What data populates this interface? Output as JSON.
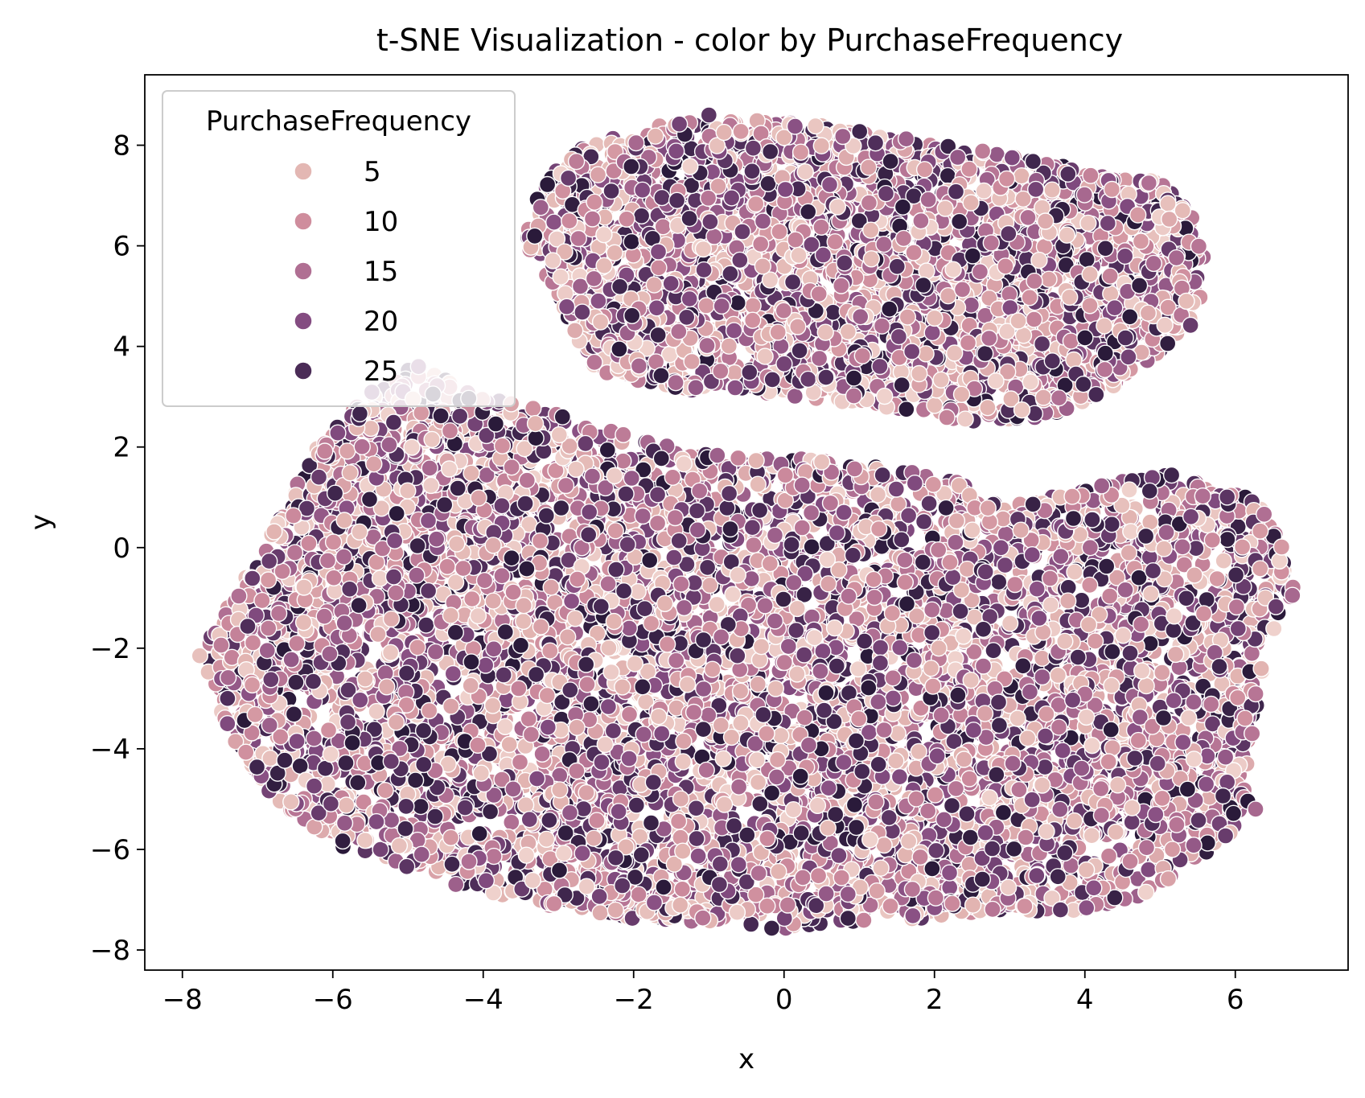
{
  "chart_data": {
    "type": "scatter",
    "title": "t-SNE Visualization - color by PurchaseFrequency",
    "xlabel": "x",
    "ylabel": "y",
    "xlim": [
      -8.5,
      7.5
    ],
    "ylim": [
      -8.4,
      9.4
    ],
    "xticks": [
      -8,
      -6,
      -4,
      -2,
      0,
      2,
      4,
      6
    ],
    "xtick_labels": [
      "−8",
      "−6",
      "−4",
      "−2",
      "0",
      "2",
      "4",
      "6"
    ],
    "yticks": [
      -8,
      -6,
      -4,
      -2,
      0,
      2,
      4,
      6,
      8
    ],
    "ytick_labels": [
      "−8",
      "−6",
      "−4",
      "−2",
      "0",
      "2",
      "4",
      "6",
      "8"
    ],
    "grid": false,
    "legend": {
      "title": "PurchaseFrequency",
      "placement": "top-left",
      "entries": [
        {
          "label": "5",
          "value": 5,
          "color": "#e3b7b3"
        },
        {
          "label": "10",
          "value": 10,
          "color": "#cf8d9d"
        },
        {
          "label": "15",
          "value": 15,
          "color": "#b06f93"
        },
        {
          "label": "20",
          "value": 20,
          "color": "#844c81"
        },
        {
          "label": "25",
          "value": 25,
          "color": "#4b2c57"
        }
      ]
    },
    "color_scale": {
      "min": 1,
      "max": 29,
      "colors": [
        "#efd1cc",
        "#e3b7b3",
        "#cf8d9d",
        "#b06f93",
        "#844c81",
        "#4b2c57",
        "#2a1a3a"
      ]
    },
    "clusters": [
      {
        "name": "",
        "outline": [
          [
            -4.9,
            3.6
          ],
          [
            -3.9,
            3.0
          ],
          [
            -3.3,
            2.8
          ],
          [
            -2.5,
            2.4
          ],
          [
            -1.5,
            2.0
          ],
          [
            -0.5,
            1.85
          ],
          [
            0.5,
            1.75
          ],
          [
            1.5,
            1.6
          ],
          [
            2.3,
            1.3
          ],
          [
            3.0,
            0.9
          ],
          [
            3.8,
            1.05
          ],
          [
            4.5,
            1.35
          ],
          [
            5.2,
            1.45
          ],
          [
            5.9,
            1.15
          ],
          [
            6.3,
            0.9
          ],
          [
            6.6,
            0.2
          ],
          [
            6.8,
            -0.95
          ],
          [
            6.4,
            -2.0
          ],
          [
            6.25,
            -3.5
          ],
          [
            6.2,
            -5.0
          ],
          [
            5.9,
            -5.75
          ],
          [
            5.4,
            -6.3
          ],
          [
            4.8,
            -6.9
          ],
          [
            4.0,
            -7.2
          ],
          [
            3.0,
            -7.3
          ],
          [
            2.0,
            -7.35
          ],
          [
            1.0,
            -7.45
          ],
          [
            0.0,
            -7.6
          ],
          [
            -1.0,
            -7.45
          ],
          [
            -2.0,
            -7.4
          ],
          [
            -3.0,
            -7.15
          ],
          [
            -4.0,
            -6.9
          ],
          [
            -5.0,
            -6.4
          ],
          [
            -6.0,
            -5.9
          ],
          [
            -6.8,
            -5.0
          ],
          [
            -7.3,
            -3.9
          ],
          [
            -7.7,
            -2.6
          ],
          [
            -7.8,
            -2.15
          ],
          [
            -7.4,
            -1.2
          ],
          [
            -7.0,
            -0.2
          ],
          [
            -6.7,
            0.6
          ],
          [
            -6.4,
            1.5
          ],
          [
            -6.0,
            2.5
          ],
          [
            -5.5,
            3.2
          ]
        ],
        "points": 7200,
        "outliers": [
          [
            -7.77,
            -2.15
          ],
          [
            6.76,
            -0.95
          ],
          [
            6.27,
            -5.2
          ],
          [
            5.87,
            -5.73
          ],
          [
            -4.86,
            3.6
          ]
        ]
      },
      {
        "name": "",
        "outline": [
          [
            -3.5,
            6.0
          ],
          [
            -3.2,
            7.3
          ],
          [
            -2.8,
            7.9
          ],
          [
            -2.0,
            8.3
          ],
          [
            -1.0,
            8.55
          ],
          [
            0.0,
            8.5
          ],
          [
            1.0,
            8.3
          ],
          [
            2.0,
            8.05
          ],
          [
            3.0,
            7.8
          ],
          [
            4.0,
            7.5
          ],
          [
            5.0,
            7.3
          ],
          [
            5.5,
            6.6
          ],
          [
            5.6,
            5.6
          ],
          [
            5.5,
            4.5
          ],
          [
            5.0,
            3.9
          ],
          [
            4.3,
            3.1
          ],
          [
            3.5,
            2.6
          ],
          [
            2.5,
            2.5
          ],
          [
            1.5,
            2.75
          ],
          [
            0.5,
            2.95
          ],
          [
            -0.5,
            3.1
          ],
          [
            -1.5,
            3.1
          ],
          [
            -2.5,
            3.5
          ],
          [
            -2.8,
            4.3
          ],
          [
            -3.0,
            5.0
          ]
        ],
        "points": 3300,
        "outliers": [
          [
            -1.0,
            8.6
          ],
          [
            5.3,
            6.7
          ],
          [
            5.35,
            4.9
          ]
        ]
      }
    ]
  }
}
